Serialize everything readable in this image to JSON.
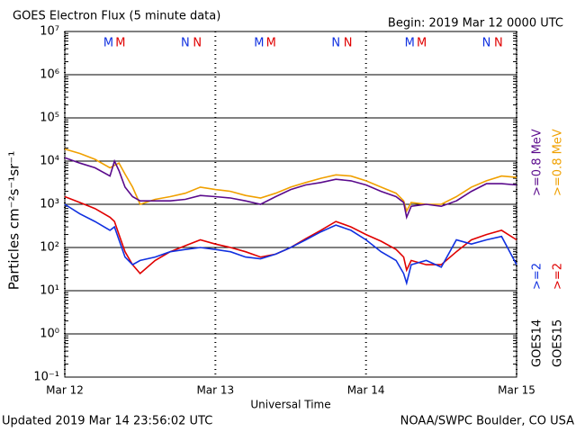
{
  "chart_data": {
    "type": "line",
    "title": "GOES Electron Flux (5 minute data)",
    "subtitle": "Begin: 2019 Mar 12 0000 UTC",
    "xlabel": "Universal Time",
    "ylabel": "Particles cm⁻²s⁻¹sr⁻¹",
    "footer_left": "Updated 2019 Mar 14 23:56:02 UTC",
    "footer_right": "NOAA/SWPC Boulder, CO USA",
    "log_y": true,
    "grid": true,
    "threshold": 1000,
    "xlim": [
      0,
      3
    ],
    "xticks": [
      {
        "value": 0,
        "label": "Mar 12"
      },
      {
        "value": 1,
        "label": "Mar 13"
      },
      {
        "value": 2,
        "label": "Mar 14"
      },
      {
        "value": 3,
        "label": "Mar 15"
      }
    ],
    "ylim": [
      0.1,
      10000000
    ],
    "yticks": [
      {
        "value": 10000000,
        "label": "10⁷"
      },
      {
        "value": 1000000,
        "label": "10⁶"
      },
      {
        "value": 100000,
        "label": "10⁵"
      },
      {
        "value": 10000,
        "label": "10⁴"
      },
      {
        "value": 1000,
        "label": "10³"
      },
      {
        "value": 100,
        "label": "10²"
      },
      {
        "value": 10,
        "label": "10¹"
      },
      {
        "value": 1,
        "label": "10⁰"
      },
      {
        "value": 0.1,
        "label": "10⁻¹"
      }
    ],
    "legend_titles": [
      "GOES14",
      "GOES15"
    ],
    "x": [
      0,
      0.1,
      0.2,
      0.3,
      0.33,
      0.36,
      0.4,
      0.45,
      0.5,
      0.6,
      0.7,
      0.8,
      0.9,
      1.0,
      1.1,
      1.2,
      1.3,
      1.4,
      1.5,
      1.6,
      1.7,
      1.8,
      1.9,
      2.0,
      2.1,
      2.2,
      2.25,
      2.27,
      2.3,
      2.4,
      2.5,
      2.6,
      2.7,
      2.8,
      2.9,
      3.0
    ],
    "series": [
      {
        "name": ">=2",
        "color": "#1030e0",
        "values": [
          1000,
          600,
          400,
          250,
          300,
          150,
          60,
          40,
          50,
          60,
          80,
          90,
          100,
          90,
          80,
          60,
          55,
          70,
          100,
          150,
          230,
          330,
          250,
          150,
          80,
          50,
          25,
          15,
          40,
          50,
          35,
          150,
          120,
          150,
          180,
          40
        ]
      },
      {
        "name": ">=0.8 MeV",
        "color": "#5a0a8c",
        "values": [
          12000,
          9000,
          7000,
          4500,
          10000,
          6000,
          2500,
          1500,
          1200,
          1200,
          1200,
          1300,
          1600,
          1500,
          1400,
          1200,
          1000,
          1500,
          2200,
          2800,
          3200,
          3800,
          3500,
          2800,
          2000,
          1500,
          1100,
          500,
          900,
          1000,
          900,
          1200,
          2000,
          3000,
          3000,
          2800
        ]
      },
      {
        "name": ">=2",
        "color": "#e00000",
        "values": [
          1500,
          1100,
          800,
          500,
          400,
          200,
          80,
          40,
          25,
          50,
          80,
          110,
          150,
          120,
          100,
          80,
          60,
          70,
          100,
          160,
          250,
          400,
          300,
          200,
          140,
          90,
          60,
          30,
          50,
          40,
          40,
          80,
          150,
          200,
          250,
          150
        ]
      },
      {
        "name": ">=0.8 MeV",
        "color": "#f0a000",
        "values": [
          19000,
          15000,
          11000,
          7000,
          8000,
          9000,
          5000,
          2500,
          1000,
          1300,
          1500,
          1800,
          2500,
          2200,
          2000,
          1600,
          1400,
          1800,
          2500,
          3200,
          4000,
          4800,
          4500,
          3500,
          2500,
          1800,
          1200,
          700,
          1100,
          1000,
          1000,
          1500,
          2500,
          3500,
          4500,
          4200
        ]
      }
    ],
    "annotations": [
      {
        "text": "M",
        "color": "#1030e0",
        "x": 0.29
      },
      {
        "text": "M",
        "color": "#e00000",
        "x": 0.37
      },
      {
        "text": "N",
        "color": "#1030e0",
        "x": 0.8
      },
      {
        "text": "N",
        "color": "#e00000",
        "x": 0.88
      },
      {
        "text": "M",
        "color": "#1030e0",
        "x": 1.29
      },
      {
        "text": "M",
        "color": "#e00000",
        "x": 1.37
      },
      {
        "text": "N",
        "color": "#1030e0",
        "x": 1.8
      },
      {
        "text": "N",
        "color": "#e00000",
        "x": 1.88
      },
      {
        "text": "M",
        "color": "#1030e0",
        "x": 2.29
      },
      {
        "text": "M",
        "color": "#e00000",
        "x": 2.37
      },
      {
        "text": "N",
        "color": "#1030e0",
        "x": 2.8
      },
      {
        "text": "N",
        "color": "#e00000",
        "x": 2.88
      }
    ]
  }
}
